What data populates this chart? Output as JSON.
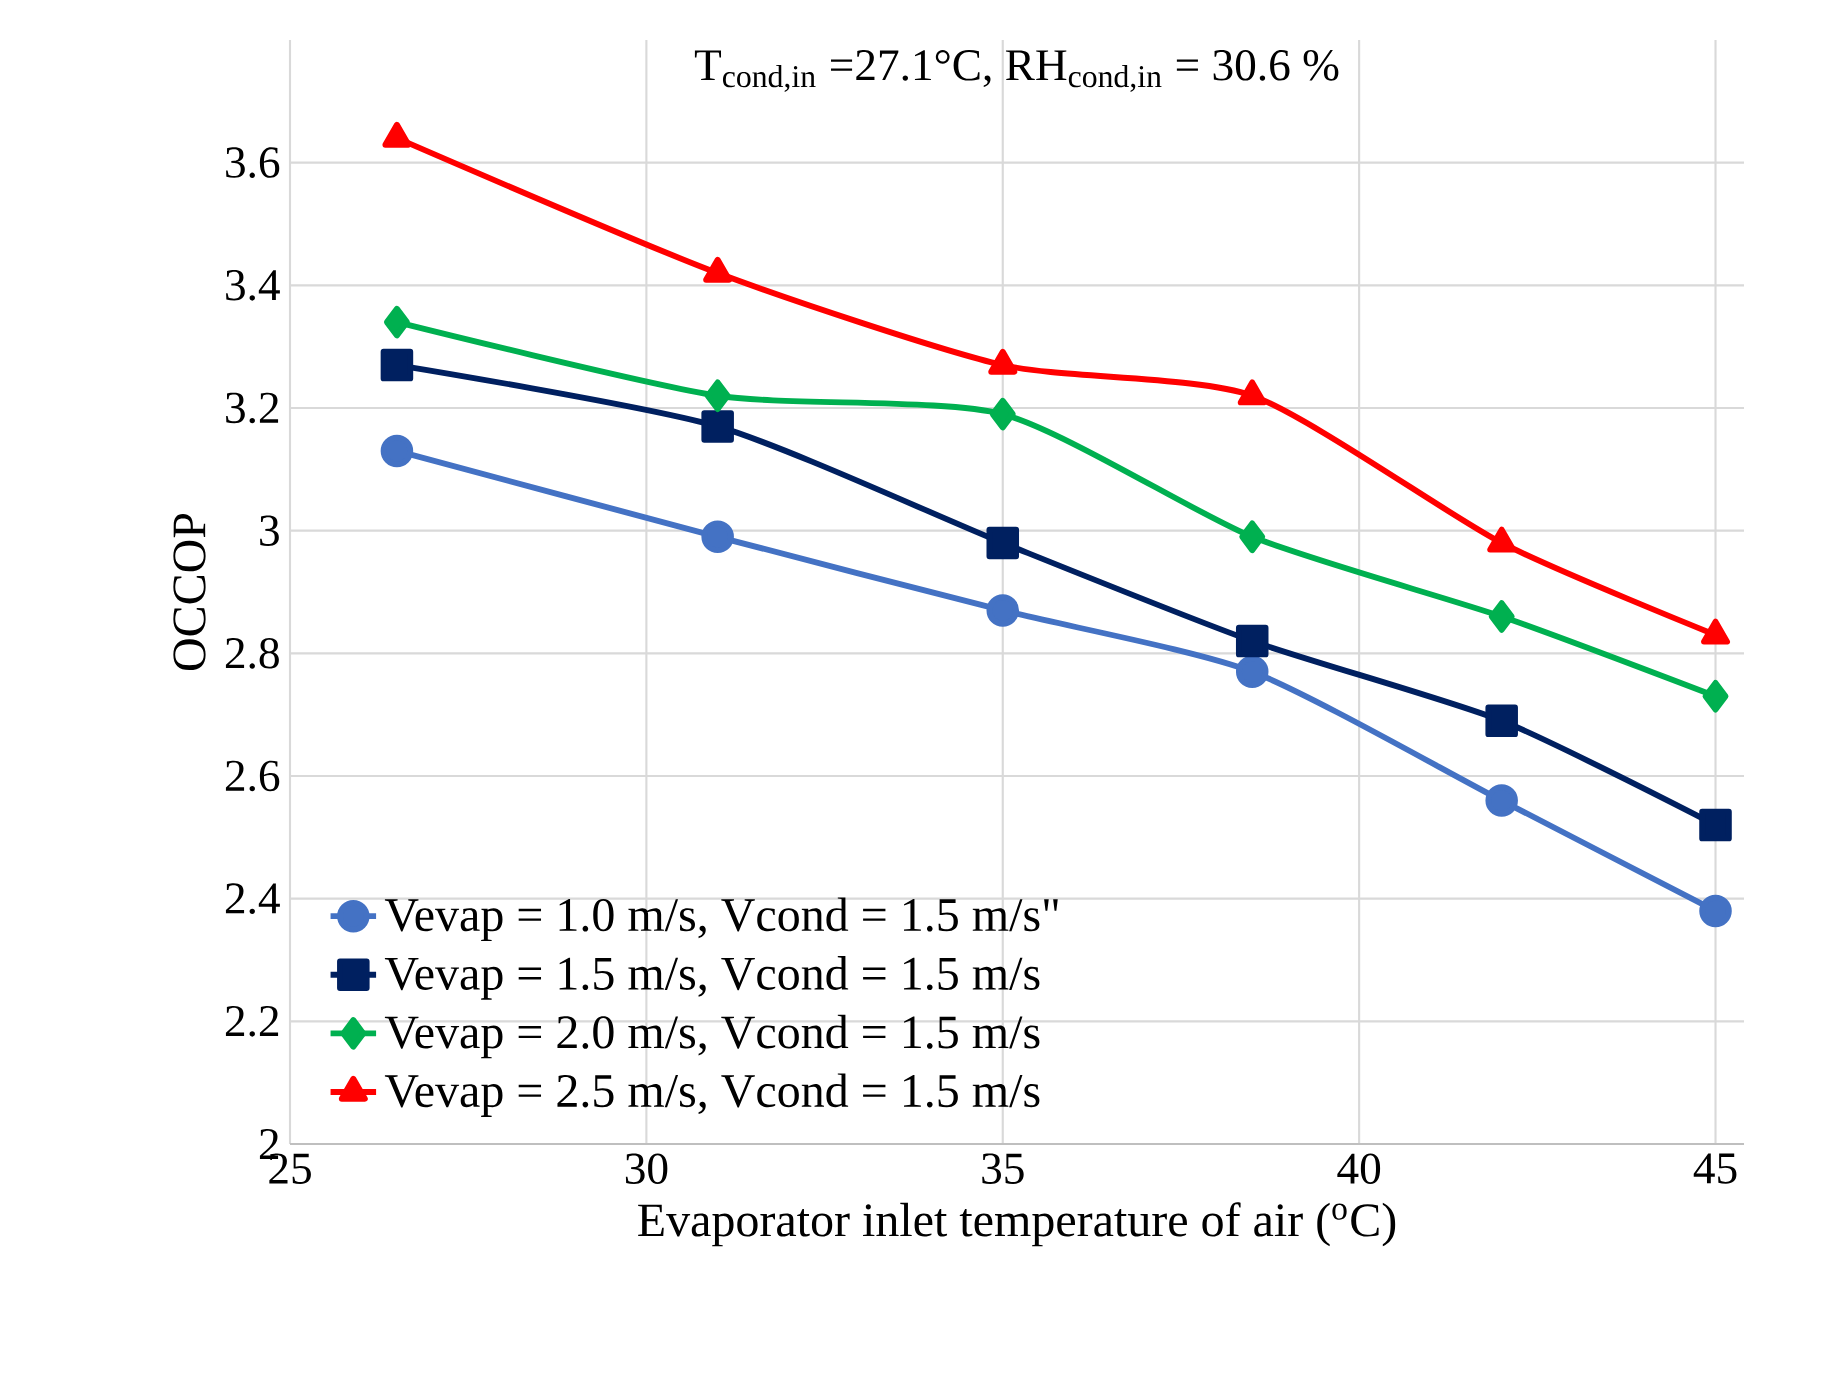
{
  "chart_data": {
    "type": "line",
    "title": "T$_{cond,in}$ =27.1°C, RH$_{cond,in}$ = 30.6 %",
    "xlabel": "Evaporator inlet temperature of air ($^{o}$C)",
    "ylabel": "OCCOP",
    "xlim": [
      25,
      45.4
    ],
    "ylim": [
      2,
      3.8
    ],
    "xticks": [
      25,
      30,
      35,
      40,
      45
    ],
    "yticks": [
      2,
      2.2,
      2.4,
      2.6,
      2.8,
      3,
      3.2,
      3.4,
      3.6
    ],
    "grid": true,
    "legend": "bottom left",
    "x": [
      26.5,
      31,
      35,
      38.5,
      42,
      45
    ],
    "series": [
      {
        "name": "Vevap = 1.0 m/s, Vcond = 1.5 m/s\"",
        "color": "#4472c4",
        "marker": "circle",
        "values": [
          3.13,
          2.99,
          2.87,
          2.77,
          2.56,
          2.38
        ]
      },
      {
        "name": "Vevap = 1.5 m/s, Vcond = 1.5 m/s",
        "color": "#002060",
        "marker": "square",
        "values": [
          3.27,
          3.17,
          2.98,
          2.82,
          2.69,
          2.52
        ]
      },
      {
        "name": "Vevap = 2.0 m/s, Vcond = 1.5 m/s",
        "color": "#00b050",
        "marker": "diamond",
        "values": [
          3.34,
          3.22,
          3.19,
          2.99,
          2.86,
          2.73
        ]
      },
      {
        "name": "Vevap = 2.5 m/s, Vcond = 1.5 m/s",
        "color": "#ff0000",
        "marker": "triangle",
        "values": [
          3.64,
          3.42,
          3.27,
          3.22,
          2.98,
          2.83
        ]
      }
    ]
  }
}
